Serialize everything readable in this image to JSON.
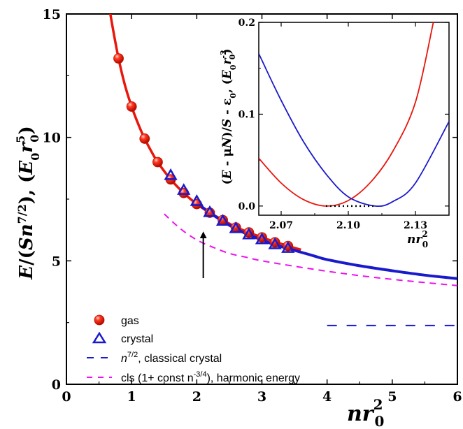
{
  "chart_data": [
    {
      "type": "line",
      "xlim": [
        0,
        6
      ],
      "ylim": [
        0,
        15
      ],
      "x_ticks": [
        0,
        1,
        2,
        3,
        4,
        5,
        6
      ],
      "y_ticks": [
        0,
        5,
        10,
        15
      ],
      "x_tick_labels": [
        "0",
        "1",
        "2",
        "3",
        "4",
        "5",
        "6"
      ],
      "y_tick_labels": [
        "0",
        "5",
        "10",
        "15"
      ],
      "ylabel": {
        "a": "E",
        "b": "/(",
        "c": "Sn",
        "d": "7/2",
        "e": "), (",
        "f": "E",
        "g": "0",
        "h": "r",
        "i": "5",
        "j": "0",
        "k": ")"
      },
      "xlabel": {
        "a": "nr",
        "b": "2",
        "c": "0"
      },
      "series": [
        {
          "name": "gas",
          "color": "#e8160c",
          "marker": "sphere",
          "x": [
            0.8,
            1.0,
            1.2,
            1.4,
            1.6,
            1.8,
            2.0,
            2.2,
            2.4,
            2.6,
            2.8,
            3.0,
            3.2,
            3.4
          ],
          "y": [
            13.2,
            11.25,
            9.95,
            9.0,
            8.3,
            7.75,
            7.3,
            6.95,
            6.65,
            6.35,
            6.15,
            5.95,
            5.75,
            5.6
          ]
        },
        {
          "name": "crystal",
          "color": "#1a1acc",
          "marker": "triangle",
          "x": [
            1.6,
            1.8,
            2.0,
            2.2,
            2.4,
            2.6,
            2.8,
            3.0,
            3.2,
            3.4
          ],
          "y": [
            8.45,
            7.85,
            7.4,
            6.95,
            6.6,
            6.3,
            6.05,
            5.85,
            5.65,
            5.5
          ]
        },
        {
          "name": "gas-fit",
          "color": "#e8160c",
          "x": [
            0.65,
            0.7,
            0.8,
            0.9,
            1.0,
            1.1,
            1.2,
            1.3,
            1.4,
            1.6,
            1.8,
            2.0,
            2.2,
            2.4,
            2.6,
            2.8,
            3.0,
            3.2,
            3.4,
            3.6
          ],
          "y": [
            15.4,
            14.6,
            13.2,
            12.1,
            11.25,
            10.55,
            9.95,
            9.45,
            9.0,
            8.3,
            7.75,
            7.3,
            6.95,
            6.65,
            6.37,
            6.15,
            5.95,
            5.77,
            5.6,
            5.45
          ]
        },
        {
          "name": "crystal-fit",
          "color": "#1a1acc",
          "x": [
            2.0,
            2.2,
            2.4,
            2.6,
            2.8,
            3.0,
            3.2,
            3.4,
            3.6,
            3.8,
            4.0,
            4.5,
            5.0,
            5.5,
            6.0
          ],
          "y": [
            7.35,
            6.95,
            6.6,
            6.3,
            6.05,
            5.85,
            5.65,
            5.5,
            5.35,
            5.2,
            5.05,
            4.8,
            4.6,
            4.42,
            4.28
          ]
        },
        {
          "name": "n^{7/2}, classical crystal",
          "color": "#1a1acc",
          "dash": "long",
          "x": [
            4.0,
            6.0
          ],
          "y": [
            2.38,
            2.38
          ]
        },
        {
          "name": "cls (1+ const n^{-3/4}), harmonic energy",
          "color": "#ee10ee",
          "dash": "medium",
          "x": [
            1.5,
            1.75,
            2.0,
            2.25,
            2.5,
            2.75,
            3.0,
            3.5,
            4.0,
            4.5,
            5.0,
            5.5,
            6.0
          ],
          "y": [
            6.9,
            6.3,
            5.85,
            5.55,
            5.3,
            5.15,
            5.0,
            4.78,
            4.58,
            4.4,
            4.25,
            4.12,
            4.0
          ]
        }
      ],
      "legend": {
        "position": "bottom-left",
        "entries": [
          {
            "label": "gas",
            "kind": "sphere",
            "color": "#e8160c"
          },
          {
            "label": "crystal",
            "kind": "triangle",
            "color": "#1a1acc"
          },
          {
            "label_base": "n",
            "label_sup": "7/2",
            "label_rest": ", classical crystal",
            "kind": "long-dash",
            "color": "#1a1acc"
          },
          {
            "label_base": "cls (1+ const n",
            "label_sup": "-3/4",
            "label_rest": "), harmonic energy",
            "kind": "medium-dash",
            "color": "#ee10ee"
          }
        ]
      },
      "annotation": {
        "type": "arrow",
        "x": 2.1,
        "y_from": 4.3,
        "y_to": 6.05
      }
    },
    {
      "type": "line",
      "position": "inset top-right",
      "xlim": [
        2.06,
        2.145
      ],
      "ylim": [
        -0.01,
        0.2
      ],
      "x_ticks": [
        2.07,
        2.1,
        2.13
      ],
      "y_ticks": [
        0.0,
        0.1,
        0.2
      ],
      "x_tick_labels": [
        "2.07",
        "2.10",
        "2.13"
      ],
      "y_tick_labels": [
        "0.0",
        "0.1",
        "0.2"
      ],
      "ylabel": {
        "a": "(",
        "b": "E",
        "c": " - μ",
        "d": "N",
        "e": ")/",
        "f": "S",
        "g": " - ε",
        "h": "0",
        "i": ", (",
        "j": "E",
        "k": "0",
        "l": "r",
        "m": "-2",
        "n": "0",
        "o": ")"
      },
      "xlabel": {
        "a": "nr",
        "b": "2",
        "c": "0"
      },
      "series": [
        {
          "name": "gas",
          "color": "#e8160c",
          "x": [
            2.06,
            2.07,
            2.08,
            2.09,
            2.1,
            2.11,
            2.12,
            2.13,
            2.138
          ],
          "y": [
            0.052,
            0.025,
            0.007,
            0.0,
            0.006,
            0.026,
            0.06,
            0.113,
            0.2
          ]
        },
        {
          "name": "crystal",
          "color": "#1a1acc",
          "x": [
            2.06,
            2.07,
            2.08,
            2.09,
            2.1,
            2.112,
            2.12,
            2.13,
            2.145
          ],
          "y": [
            0.166,
            0.115,
            0.07,
            0.035,
            0.01,
            0.0,
            0.005,
            0.025,
            0.092
          ]
        },
        {
          "name": "dotted-baseline",
          "color": "#000000",
          "dash": "dot",
          "x": [
            2.09,
            2.112
          ],
          "y": [
            0.0,
            0.0
          ]
        }
      ]
    }
  ]
}
